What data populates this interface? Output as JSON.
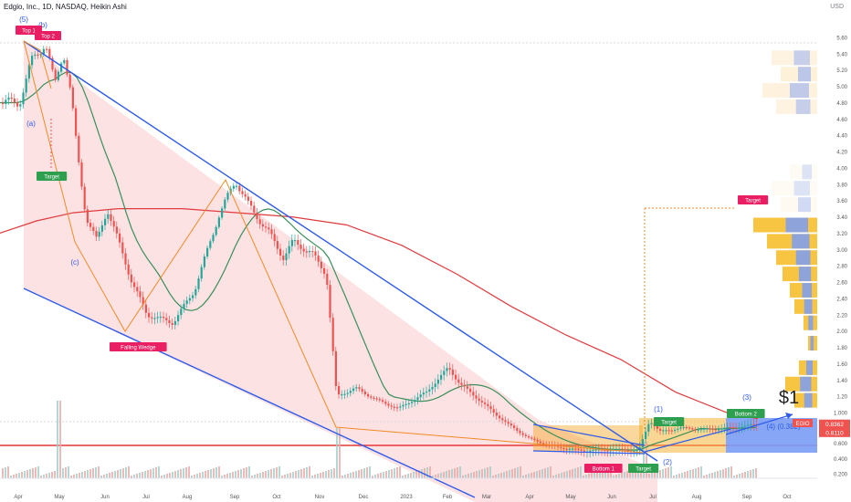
{
  "header": {
    "title": "Edgio, Inc., 1D, NASDAQ, Heikin Ashi",
    "currency": "USD"
  },
  "colors": {
    "up": "#26a69a",
    "down": "#ef5350",
    "channel_fill": "#fde2e4",
    "channel_line": "#2f5bea",
    "ma_slow": "#e03a3e",
    "ma_fast": "#3a8f5a",
    "pattern": "#f08a24",
    "profile_gold": "#f7c542",
    "profile_blue": "#7a9cf5",
    "zone": "#f5b53b",
    "label_red": "#e91e63",
    "label_green": "#2e9e4f"
  },
  "chart_data": {
    "type": "candlestick",
    "title": "Edgio, Inc., 1D, NASDAQ, Heikin Ashi",
    "currency": "USD",
    "x_ticks": [
      "Apr",
      "May",
      "Jun",
      "Jul",
      "Aug",
      "Sep",
      "Oct",
      "Nov",
      "Dec",
      "2023",
      "Feb",
      "Mar",
      "Apr",
      "May",
      "Jun",
      "Jul",
      "Aug",
      "Sep",
      "Oct"
    ],
    "y_ticks": [
      "5.60",
      "5.40",
      "5.20",
      "5.00",
      "4.80",
      "4.60",
      "4.40",
      "4.20",
      "4.00",
      "3.80",
      "3.60",
      "3.40",
      "3.20",
      "3.00",
      "2.80",
      "2.60",
      "2.40",
      "2.20",
      "2.00",
      "1.80",
      "1.60",
      "1.40",
      "1.20",
      "1.000",
      "0.800",
      "0.600",
      "0.400",
      "0.200"
    ],
    "price_path": [
      [
        "Apr-01",
        4.8
      ],
      [
        "Apr-10",
        5.3
      ],
      [
        "Apr-20",
        5.55
      ],
      [
        "Apr-27",
        5.0
      ],
      [
        "May-03",
        5.45
      ],
      [
        "May-08",
        4.9
      ],
      [
        "May-12",
        4.2
      ],
      [
        "May-18",
        3.4
      ],
      [
        "May-25",
        3.1
      ],
      [
        "Jun-02",
        3.5
      ],
      [
        "Jun-12",
        3.0
      ],
      [
        "Jun-20",
        2.6
      ],
      [
        "Jul-01",
        2.2
      ],
      [
        "Jul-20",
        2.1
      ],
      [
        "Aug-05",
        2.5
      ],
      [
        "Aug-20",
        3.4
      ],
      [
        "Sep-01",
        3.85
      ],
      [
        "Sep-10",
        3.55
      ],
      [
        "Sep-25",
        3.2
      ],
      [
        "Oct-05",
        2.9
      ],
      [
        "Oct-12",
        3.1
      ],
      [
        "Oct-25",
        2.95
      ],
      [
        "Nov-05",
        2.7
      ],
      [
        "Nov-12",
        1.2
      ],
      [
        "Nov-25",
        1.3
      ],
      [
        "Dec-10",
        1.15
      ],
      [
        "Dec-25",
        1.05
      ],
      [
        "Jan-15",
        1.25
      ],
      [
        "Feb-01",
        1.55
      ],
      [
        "Feb-10",
        1.35
      ],
      [
        "Feb-25",
        1.15
      ],
      [
        "Mar-15",
        0.85
      ],
      [
        "Apr-01",
        0.65
      ],
      [
        "Apr-20",
        0.55
      ],
      [
        "May-10",
        0.5
      ],
      [
        "May-30",
        0.52
      ],
      [
        "Jun-20",
        0.5
      ],
      [
        "Jun-28",
        0.9
      ],
      [
        "Jul-05",
        0.75
      ],
      [
        "Jul-20",
        0.8
      ],
      [
        "Aug-05",
        0.78
      ],
      [
        "Aug-20",
        0.8
      ],
      [
        "Sep-05",
        0.84
      ]
    ],
    "last_price": "0.8362",
    "second_price": "0.8110",
    "series": [
      {
        "name": "",
        "kind": "moving_average_long",
        "color": "#e03a3e"
      },
      {
        "name": "",
        "kind": "moving_average_short",
        "color": "#3a8f5a"
      }
    ],
    "annotations": {
      "wave_labels": [
        "(5)",
        "(b)",
        "(a)",
        "(c)",
        "(1)",
        "(2)",
        "(3)",
        "(4) (0.382)"
      ],
      "tags_red": [
        "Top 1",
        "Top 2",
        "Falling Wedge",
        "Target",
        "Bottom 1"
      ],
      "tags_green": [
        "Target",
        "Target",
        "Bottom 2",
        "Target"
      ],
      "price_target_text": "$1",
      "zone_label": "EGIO"
    },
    "grid": false,
    "legend": "none"
  }
}
